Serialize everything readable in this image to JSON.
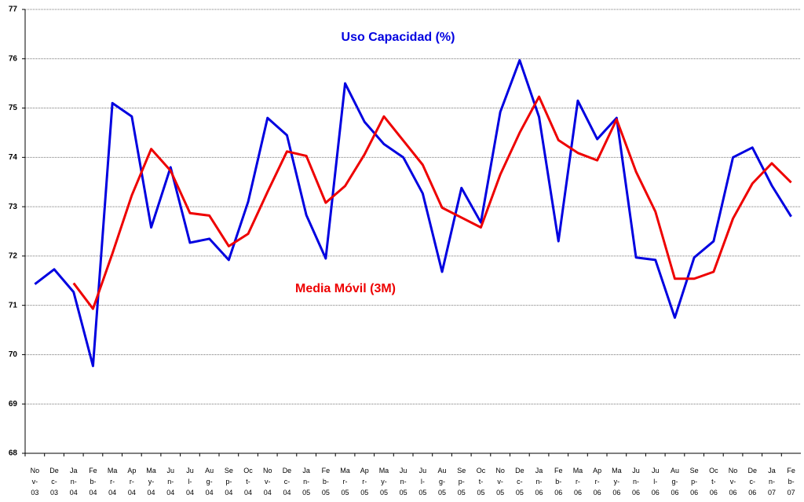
{
  "chart_data": {
    "type": "line",
    "categories": [
      "Nov-03",
      "Dec-03",
      "Jan-04",
      "Feb-04",
      "Mar-04",
      "Apr-04",
      "May-04",
      "Jun-04",
      "Jul-04",
      "Aug-04",
      "Sep-04",
      "Oct-04",
      "Nov-04",
      "Dec-04",
      "Jan-05",
      "Feb-05",
      "Mar-05",
      "Apr-05",
      "May-05",
      "Jun-05",
      "Jul-05",
      "Aug-05",
      "Sep-05",
      "Oct-05",
      "Nov-05",
      "Dec-05",
      "Jan-06",
      "Feb-06",
      "Mar-06",
      "Apr-06",
      "May-06",
      "Jun-06",
      "Jul-06",
      "Aug-06",
      "Sep-06",
      "Oct-06",
      "Nov-06",
      "Dec-06",
      "Jan-07",
      "Feb-07"
    ],
    "series": [
      {
        "name": "Uso Capacidad (%)",
        "color": "#0000e0",
        "values": [
          71.43,
          71.73,
          71.27,
          69.77,
          75.1,
          74.83,
          72.58,
          73.8,
          72.27,
          72.35,
          71.92,
          73.1,
          74.8,
          74.45,
          72.83,
          71.95,
          75.5,
          74.72,
          74.27,
          74.0,
          73.27,
          71.68,
          73.38,
          72.68,
          74.92,
          75.97,
          74.82,
          72.3,
          75.15,
          74.37,
          74.8,
          71.97,
          71.92,
          70.75,
          71.97,
          72.3,
          74.0,
          74.2,
          73.43,
          72.8
        ]
      },
      {
        "name": "Media Móvil (3M)",
        "color": "#ee0000",
        "values": [
          null,
          null,
          71.45,
          70.93,
          72.05,
          73.23,
          74.17,
          73.73,
          72.87,
          72.82,
          72.2,
          72.45,
          73.3,
          74.12,
          74.03,
          73.08,
          73.42,
          74.06,
          74.83,
          74.34,
          73.85,
          72.98,
          72.78,
          72.58,
          73.65,
          74.5,
          75.23,
          74.35,
          74.09,
          73.94,
          74.77,
          73.71,
          72.9,
          71.54,
          71.54,
          71.68,
          72.76,
          73.47,
          73.88,
          73.49
        ]
      }
    ],
    "ylim": [
      68,
      77
    ],
    "yticks": [
      68,
      69,
      70,
      71,
      72,
      73,
      74,
      75,
      76,
      77
    ],
    "grid": true
  }
}
